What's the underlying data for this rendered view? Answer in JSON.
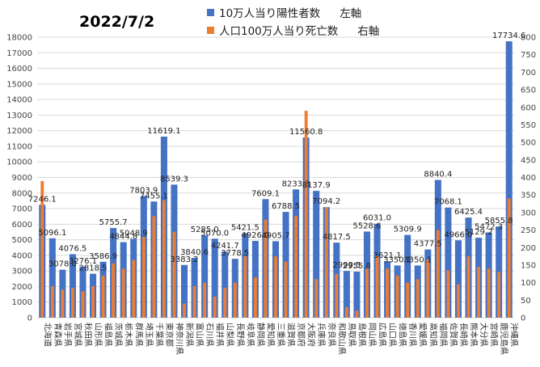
{
  "chart_data": {
    "type": "bar",
    "title": "2022/7/2",
    "legend_position": "top",
    "grid": true,
    "colors": {
      "primary": "#4472C4",
      "secondary": "#ED7D31",
      "grid": "#d9d9d9"
    },
    "y_left": {
      "min": 0,
      "max": 18000,
      "step": 1000
    },
    "y_right": {
      "min": 0,
      "max": 800,
      "step": 50
    },
    "series": [
      {
        "label": "10万人当り陽性者数",
        "axis_label": "左軸",
        "axis": "left",
        "color": "#4472C4"
      },
      {
        "label": "人口100万人当り死亡数",
        "axis_label": "右軸",
        "axis": "right",
        "color": "#ED7D31"
      }
    ],
    "categories": [
      "北海道",
      "青森県",
      "岩手県",
      "宮城県",
      "秋田県",
      "山形県",
      "福島県",
      "茨城県",
      "栃木県",
      "群馬県",
      "埼玉県",
      "千葉県",
      "東京都",
      "神奈川県",
      "新潟県",
      "富山県",
      "石川県",
      "福井県",
      "山梨県",
      "長野県",
      "岐阜県",
      "静岡県",
      "愛知県",
      "三重県",
      "滋賀県",
      "京都府",
      "大阪府",
      "兵庫県",
      "奈良県",
      "和歌山県",
      "鳥取県",
      "島根県",
      "岡山県",
      "広島県",
      "山口県",
      "徳島県",
      "香川県",
      "愛媛県",
      "高知県",
      "福岡県",
      "佐賀県",
      "長崎県",
      "熊本県",
      "大分県",
      "宮崎県",
      "鹿児島県",
      "沖縄県"
    ],
    "positives": [
      7246.1,
      5096.1,
      3078.0,
      4076.5,
      3276.1,
      2818.5,
      3586.9,
      5755.7,
      4844.8,
      5048.9,
      7803.9,
      7455.1,
      11619.1,
      8539.3,
      3383.2,
      3840.6,
      5285.0,
      5070.0,
      4241.7,
      3778.5,
      5421.5,
      4926.0,
      7609.1,
      4905.7,
      6788.5,
      8233.3,
      11560.8,
      8137.9,
      7094.2,
      4817.5,
      2999.5,
      2955.8,
      5528.6,
      6031.0,
      3621.1,
      3350.1,
      5309.9,
      3350.1,
      4377.5,
      8840.4,
      7068.1,
      4966.0,
      6425.4,
      5129.2,
      5472.3,
      5855.8,
      17734.6
    ],
    "deaths": [
      390,
      90,
      80,
      85,
      75,
      90,
      120,
      155,
      140,
      165,
      230,
      290,
      335,
      245,
      40,
      90,
      100,
      60,
      85,
      100,
      175,
      115,
      280,
      175,
      160,
      290,
      590,
      110,
      315,
      125,
      30,
      20,
      140,
      175,
      140,
      120,
      100,
      110,
      165,
      250,
      135,
      95,
      175,
      145,
      140,
      130,
      340
    ],
    "data_labels": [
      "7246.1",
      "5096.1",
      "3078.0",
      "4076.5",
      "3276.1",
      "2818.5",
      "3586.9",
      "5755.7",
      "4844.8",
      "5048.9",
      "7803.9",
      "7455.1",
      "11619.1",
      "8539.3",
      "3383.2",
      "3840.6",
      "5285.0",
      "5070.0",
      "4241.7",
      "3778.5",
      "5421.5",
      "4926.0",
      "7609.1",
      "4905.7",
      "6788.5",
      "8233.3",
      "11560.8",
      "8137.9",
      "7094.2",
      "4817.5",
      "2999.5",
      "2955.8",
      "5528.6",
      "6031.0",
      "3621.1",
      "3350.1",
      "5309.9",
      "3350.1",
      "4377.5",
      "8840.4",
      "7068.1",
      "4966.0",
      "6425.4",
      "5129.2",
      "5472.3",
      "5855.8",
      "17734.6"
    ]
  }
}
